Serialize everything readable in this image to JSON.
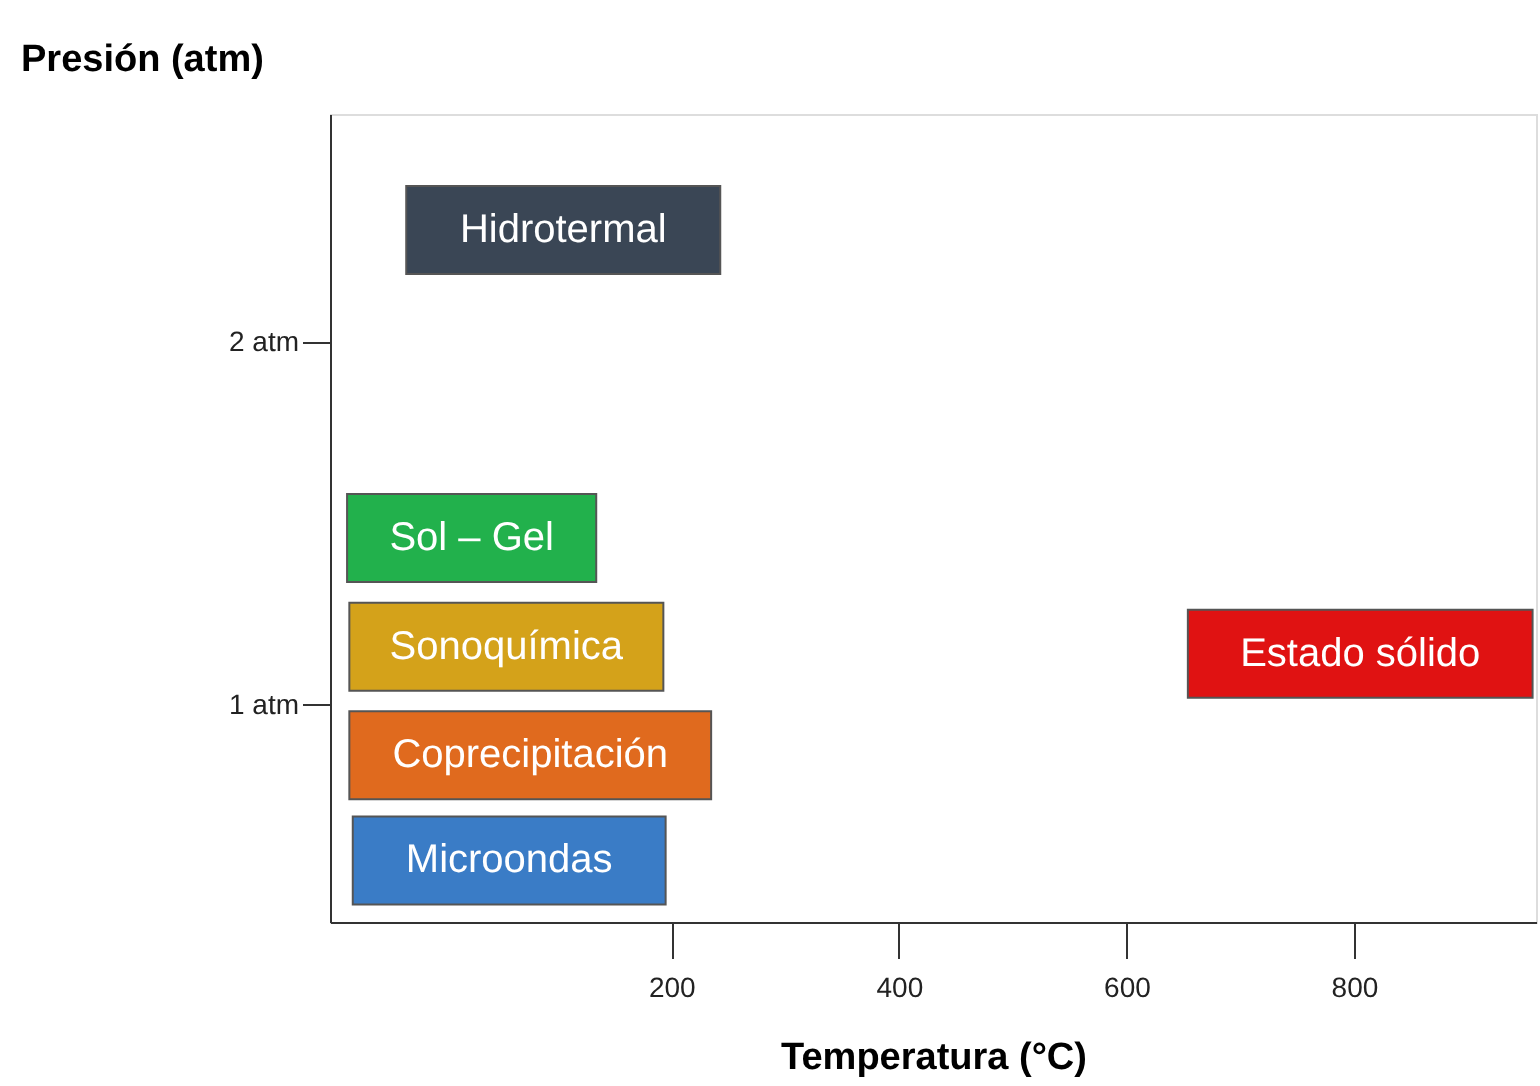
{
  "chart_data": {
    "type": "bar",
    "orientation": "horizontal",
    "xlabel": "Temperatura (°C)",
    "ylabel": "Presión (atm)",
    "x": [
      0.57,
      0.86,
      1.14,
      1.16,
      1.46,
      2.31
    ],
    "base": [
      -80,
      -83,
      654,
      -83,
      -85,
      -33
    ],
    "values": [
      275,
      318,
      303,
      276,
      219,
      276
    ],
    "value_labels": [
      "Microondas",
      "Coprecipitación",
      "Estado sólido",
      "Sonoquímica",
      "Sol – Gel",
      "Hidrotermal"
    ],
    "colors": [
      "#3a7cc6",
      "#e06a1e",
      "#e01212",
      "#d4a21a",
      "#22b14c",
      "#3a4655"
    ],
    "xlim": [
      -100,
      960
    ],
    "xticks": [
      200,
      400,
      600,
      800
    ],
    "ylim": [
      0.4,
      2.63
    ],
    "yticks": [
      {
        "value": 1,
        "label": "1 atm"
      },
      {
        "value": 2,
        "label": "2 atm"
      }
    ],
    "grid": false
  }
}
